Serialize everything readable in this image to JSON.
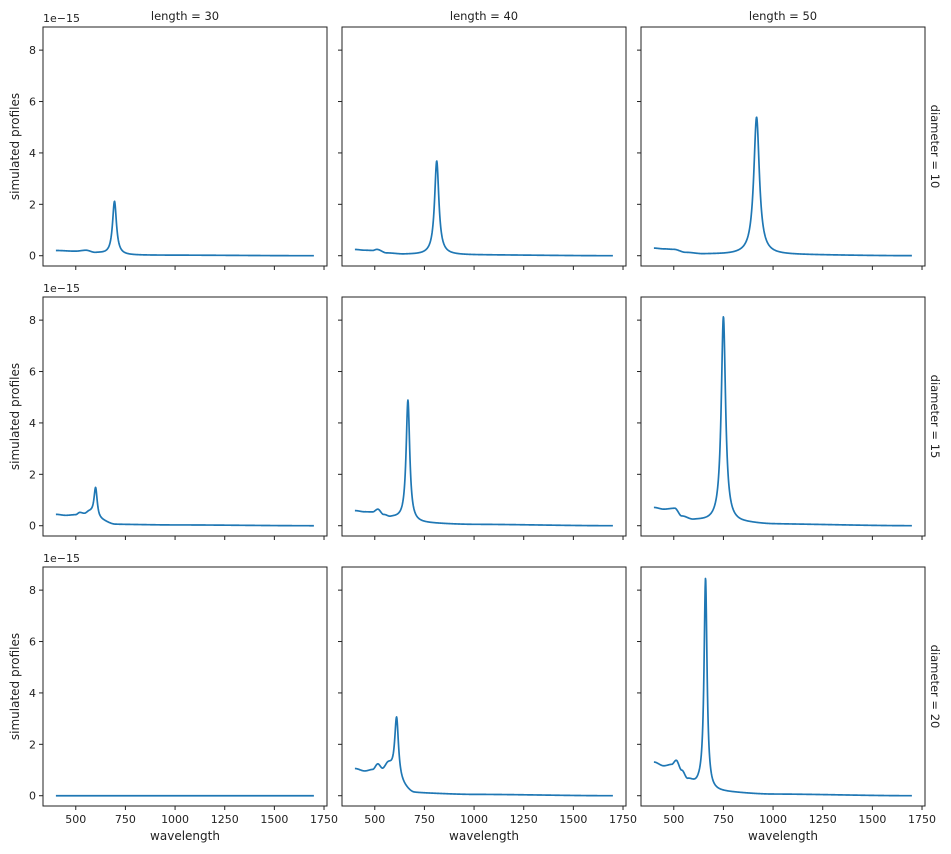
{
  "chart_data": {
    "type": "line",
    "layout": {
      "rows": 3,
      "cols": 3
    },
    "xlabel": "wavelength",
    "ylabel": "simulated profiles",
    "y_offset_label": "1e−15",
    "xlim": [
      335,
      1765
    ],
    "ylim": [
      -0.4,
      8.9
    ],
    "xticks": [
      500,
      750,
      1000,
      1250,
      1500,
      1750
    ],
    "yticks": [
      0,
      2,
      4,
      6,
      8
    ],
    "line_color": "#1f77b4",
    "col_titles": [
      "length = 30",
      "length = 40",
      "length = 50"
    ],
    "row_titles": [
      "diameter = 10",
      "diameter = 15",
      "diameter = 20"
    ],
    "x_range": [
      400,
      1700
    ],
    "panels": [
      {
        "row": 0,
        "col": 0,
        "base": [
          [
            400,
            0.2
          ],
          [
            500,
            0.17
          ],
          [
            550,
            0.2
          ],
          [
            600,
            0.1
          ],
          [
            700,
            0.02
          ],
          [
            1000,
            0.02
          ],
          [
            1700,
            0.0
          ]
        ],
        "peaks": [
          {
            "x0": 695,
            "h": 2.1,
            "w": 12
          }
        ]
      },
      {
        "row": 0,
        "col": 1,
        "base": [
          [
            400,
            0.24
          ],
          [
            450,
            0.21
          ],
          [
            490,
            0.2
          ],
          [
            510,
            0.24
          ],
          [
            560,
            0.1
          ],
          [
            650,
            0.05
          ],
          [
            750,
            0.04
          ],
          [
            1000,
            0.03
          ],
          [
            1700,
            0.0
          ]
        ],
        "peaks": [
          {
            "x0": 812,
            "h": 3.65,
            "w": 13
          }
        ]
      },
      {
        "row": 0,
        "col": 2,
        "base": [
          [
            400,
            0.29
          ],
          [
            450,
            0.26
          ],
          [
            500,
            0.24
          ],
          [
            560,
            0.12
          ],
          [
            650,
            0.06
          ],
          [
            800,
            0.05
          ],
          [
            1000,
            0.04
          ],
          [
            1700,
            0.0
          ]
        ],
        "peaks": [
          {
            "x0": 917,
            "h": 5.35,
            "w": 17
          }
        ]
      },
      {
        "row": 1,
        "col": 0,
        "base": [
          [
            400,
            0.44
          ],
          [
            450,
            0.4
          ],
          [
            500,
            0.42
          ],
          [
            520,
            0.5
          ],
          [
            545,
            0.45
          ],
          [
            565,
            0.5
          ],
          [
            620,
            0.2
          ],
          [
            700,
            0.05
          ],
          [
            1000,
            0.03
          ],
          [
            1700,
            0.0
          ]
        ],
        "peaks": [
          {
            "x0": 600,
            "h": 1.2,
            "w": 10
          }
        ]
      },
      {
        "row": 1,
        "col": 1,
        "base": [
          [
            400,
            0.58
          ],
          [
            450,
            0.53
          ],
          [
            490,
            0.52
          ],
          [
            515,
            0.62
          ],
          [
            545,
            0.4
          ],
          [
            580,
            0.3
          ],
          [
            700,
            0.1
          ],
          [
            1000,
            0.05
          ],
          [
            1700,
            0.0
          ]
        ],
        "peaks": [
          {
            "x0": 667,
            "h": 4.75,
            "w": 11
          }
        ]
      },
      {
        "row": 1,
        "col": 2,
        "base": [
          [
            400,
            0.7
          ],
          [
            450,
            0.63
          ],
          [
            505,
            0.66
          ],
          [
            540,
            0.35
          ],
          [
            600,
            0.2
          ],
          [
            700,
            0.15
          ],
          [
            850,
            0.1
          ],
          [
            1000,
            0.06
          ],
          [
            1700,
            0.0
          ]
        ],
        "peaks": [
          {
            "x0": 750,
            "h": 8.0,
            "w": 13
          }
        ]
      },
      {
        "row": 2,
        "col": 0,
        "base": [
          [
            400,
            0.0
          ],
          [
            1700,
            0.0
          ]
        ],
        "peaks": []
      },
      {
        "row": 2,
        "col": 1,
        "base": [
          [
            400,
            1.05
          ],
          [
            450,
            0.95
          ],
          [
            490,
            1.0
          ],
          [
            515,
            1.2
          ],
          [
            540,
            1.0
          ],
          [
            565,
            1.15
          ],
          [
            620,
            0.4
          ],
          [
            700,
            0.1
          ],
          [
            1000,
            0.05
          ],
          [
            1700,
            0.0
          ]
        ],
        "peaks": [
          {
            "x0": 610,
            "h": 2.6,
            "w": 12
          }
        ]
      },
      {
        "row": 2,
        "col": 2,
        "base": [
          [
            400,
            1.3
          ],
          [
            450,
            1.15
          ],
          [
            490,
            1.2
          ],
          [
            512,
            1.35
          ],
          [
            540,
            0.95
          ],
          [
            570,
            0.6
          ],
          [
            620,
            0.4
          ],
          [
            700,
            0.15
          ],
          [
            1000,
            0.06
          ],
          [
            1700,
            0.0
          ]
        ],
        "peaks": [
          {
            "x0": 660,
            "h": 8.2,
            "w": 9
          }
        ]
      }
    ]
  }
}
